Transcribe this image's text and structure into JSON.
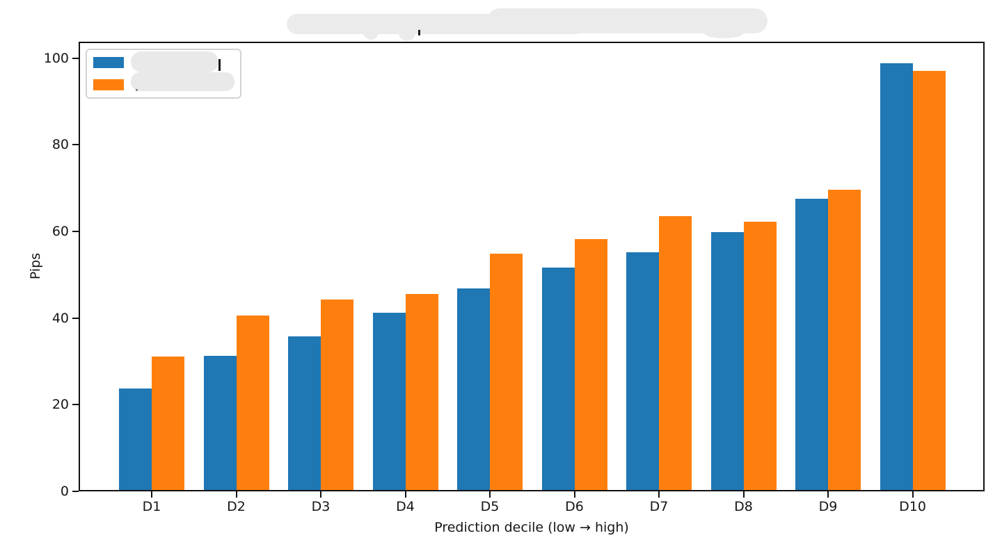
{
  "figure": {
    "title": {
      "text": "",
      "redacted": true
    },
    "xlabel": "Prediction decile (low → high)",
    "ylabel": "Pips"
  },
  "legend": {
    "position": "upper left",
    "entries": [
      {
        "label": "",
        "redacted": true,
        "color": "#1f77b4"
      },
      {
        "label": "",
        "redacted": true,
        "color": "#ff7f0e"
      }
    ]
  },
  "chart_data": {
    "type": "bar",
    "title": "[redacted]",
    "xlabel": "Prediction decile (low → high)",
    "ylabel": "Pips",
    "categories": [
      "D1",
      "D2",
      "D3",
      "D4",
      "D5",
      "D6",
      "D7",
      "D8",
      "D9",
      "D10"
    ],
    "series": [
      {
        "name": "[redacted]",
        "color": "#1f77b4",
        "values": [
          23.4,
          31.0,
          35.4,
          41.0,
          46.5,
          51.4,
          54.9,
          59.5,
          67.2,
          98.5
        ]
      },
      {
        "name": "[redacted]",
        "color": "#ff7f0e",
        "values": [
          30.8,
          40.2,
          43.9,
          45.2,
          54.5,
          57.9,
          63.3,
          61.9,
          69.3,
          96.7
        ]
      }
    ],
    "yticks": [
      0,
      20,
      40,
      60,
      80,
      100
    ],
    "ylim": [
      0,
      103.5
    ],
    "grid": false,
    "legend_position": "upper left"
  }
}
